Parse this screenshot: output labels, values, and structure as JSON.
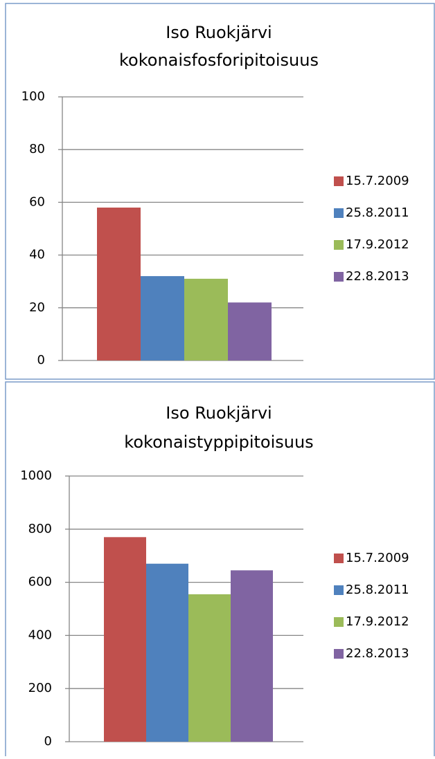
{
  "chart_data": [
    {
      "type": "bar",
      "title": [
        "Iso Ruokjärvi",
        "kokonaisfosforipitoisuus"
      ],
      "categories": [
        null
      ],
      "series": [
        {
          "name": "15.7.2009",
          "color": "#c0504d",
          "values": [
            58
          ]
        },
        {
          "name": "25.8.2011",
          "color": "#4f81bd",
          "values": [
            32
          ]
        },
        {
          "name": "17.9.2012",
          "color": "#9bbb59",
          "values": [
            31
          ]
        },
        {
          "name": "22.8.2013",
          "color": "#8064a2",
          "values": [
            22
          ]
        }
      ],
      "ylim": [
        0,
        100
      ],
      "yticks": [
        0,
        20,
        40,
        60,
        80,
        100
      ],
      "grid": true,
      "legend": "right"
    },
    {
      "type": "bar",
      "title": [
        "Iso Ruokjärvi",
        "kokonaistyppipitoisuus"
      ],
      "categories": [
        null
      ],
      "series": [
        {
          "name": "15.7.2009",
          "color": "#c0504d",
          "values": [
            770
          ]
        },
        {
          "name": "25.8.2011",
          "color": "#4f81bd",
          "values": [
            670
          ]
        },
        {
          "name": "17.9.2012",
          "color": "#9bbb59",
          "values": [
            555
          ]
        },
        {
          "name": "22.8.2013",
          "color": "#8064a2",
          "values": [
            645
          ]
        }
      ],
      "ylim": [
        0,
        1000
      ],
      "yticks": [
        0,
        200,
        400,
        600,
        800,
        1000
      ],
      "grid": true,
      "legend": "right"
    }
  ]
}
